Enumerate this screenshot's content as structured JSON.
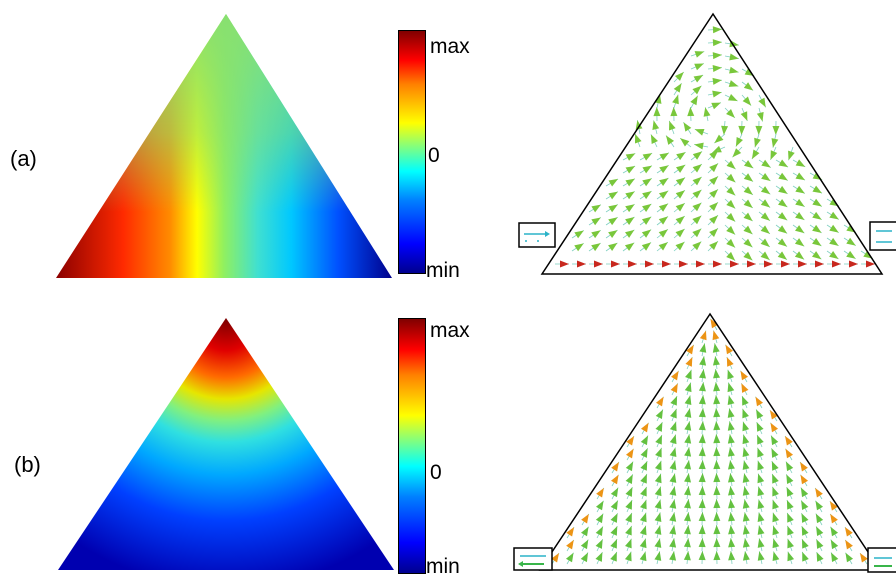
{
  "panels": [
    {
      "label": "(a)",
      "colorbar": {
        "max_label": "max",
        "zero_label": "0",
        "min_label": "min"
      }
    },
    {
      "label": "(b)",
      "colorbar": {
        "max_label": "max",
        "zero_label": "0",
        "min_label": "min"
      }
    }
  ],
  "colors": {
    "max": "#800000",
    "zero": "#80ff80",
    "min": "#00008f",
    "arrow_low": "#39b54a",
    "arrow_high": "#c0392b"
  }
}
